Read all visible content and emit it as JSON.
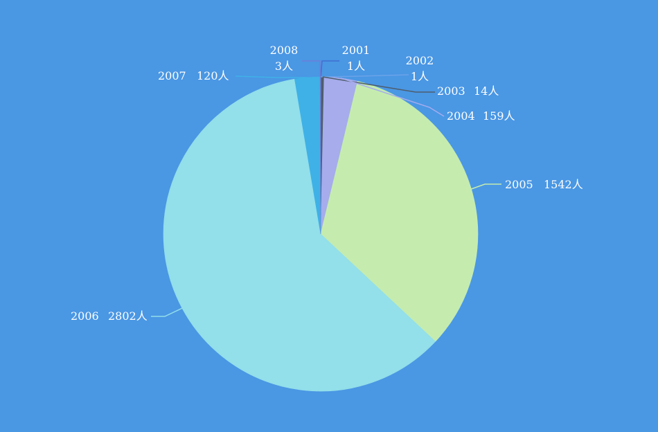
{
  "background": "#4a97e4",
  "chart_data": {
    "type": "pie",
    "title": "",
    "unit": "人",
    "slices": [
      {
        "name": "2001",
        "value": 1,
        "color": "#3f6fd0"
      },
      {
        "name": "2002",
        "value": 1,
        "color": "#6ba3e8"
      },
      {
        "name": "2003",
        "value": 14,
        "color": "#4e5d6c"
      },
      {
        "name": "2004",
        "value": 159,
        "color": "#a6acec"
      },
      {
        "name": "2005",
        "value": 1542,
        "color": "#c5ecae"
      },
      {
        "name": "2006",
        "value": 2802,
        "color": "#93dfea"
      },
      {
        "name": "2007",
        "value": 120,
        "color": "#3fb1e6"
      },
      {
        "name": "2008",
        "value": 3,
        "color": "#6c7fd8"
      }
    ],
    "labels": [
      {
        "year": "2001",
        "count": "1人"
      },
      {
        "year": "2002",
        "count": "1人"
      },
      {
        "year": "2003",
        "count": "14人"
      },
      {
        "year": "2004",
        "count": "159人"
      },
      {
        "year": "2005",
        "count": "1542人"
      },
      {
        "year": "2006",
        "count": "2802人"
      },
      {
        "year": "2007",
        "count": "120人"
      },
      {
        "year": "2008",
        "count": "3人"
      }
    ]
  }
}
